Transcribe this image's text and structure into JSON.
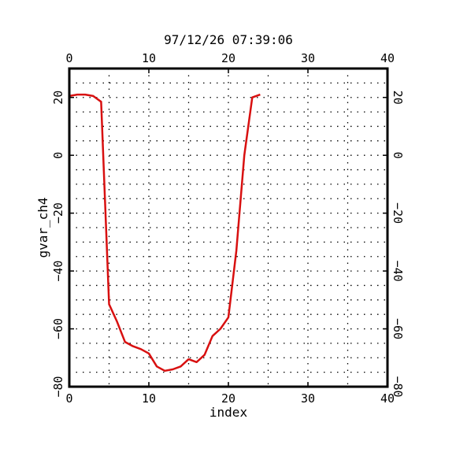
{
  "chart_data": {
    "type": "line",
    "title": "97/12/26 07:39:06",
    "xlabel": "index",
    "ylabel": "gvar_ch4",
    "xlim": [
      0,
      40
    ],
    "ylim": [
      -80,
      30
    ],
    "x_ticks": [
      0,
      10,
      20,
      30,
      40
    ],
    "x_tick_labels": [
      "0",
      "10",
      "20",
      "30",
      "40"
    ],
    "y_ticks": [
      -80,
      -60,
      -40,
      -20,
      0,
      20
    ],
    "y_tick_labels": [
      "−80",
      "−60",
      "−40",
      "−20",
      "0",
      "20"
    ],
    "grid": true,
    "grid_x_step": 5,
    "grid_y_step": 5,
    "line_color": "#d81010",
    "series": [
      {
        "x": [
          0,
          1,
          2,
          3,
          4,
          5,
          6,
          7,
          8,
          9,
          10,
          11,
          12,
          13,
          14,
          15,
          16,
          17,
          18,
          19,
          20,
          21,
          22,
          23,
          24
        ],
        "y": [
          20.5,
          21,
          21,
          20.5,
          18.5,
          -51.5,
          -57.5,
          -64.5,
          -66,
          -67,
          -68.5,
          -73,
          -74.5,
          -74,
          -73,
          -70.5,
          -71.5,
          -69,
          -62.5,
          -60,
          -56,
          -33,
          0,
          20,
          21
        ]
      }
    ]
  }
}
